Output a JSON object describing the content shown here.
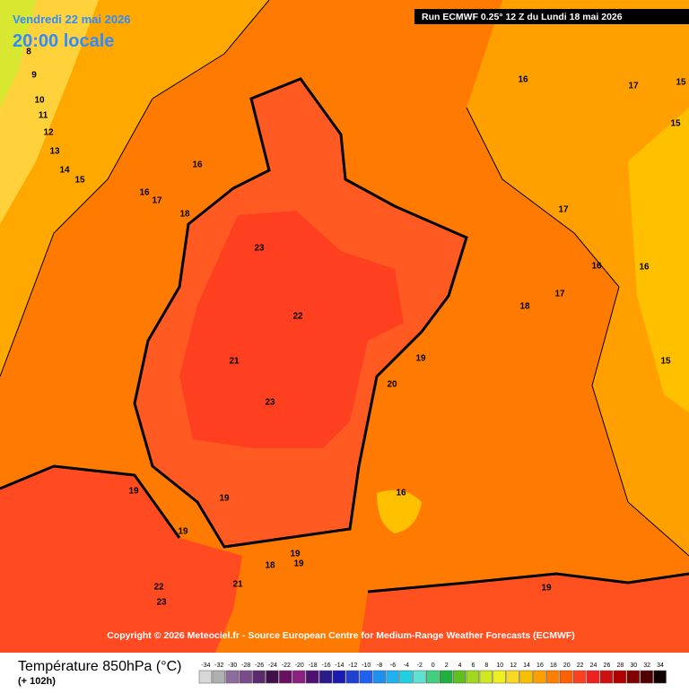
{
  "header": {
    "date": "Vendredi 22 mai 2026",
    "time": "20:00 locale",
    "run": "Run ECMWF 0.25° 12 Z du Lundi 18 mai 2026"
  },
  "copyright": "Copyright © 2026 Meteociel.fr - Source European Centre for Medium-Range Weather Forecasts (ECMWF)",
  "contour_labels": [
    8,
    9,
    10,
    11,
    12,
    13,
    14,
    15,
    16,
    16,
    17,
    18,
    23,
    22,
    21,
    23,
    19,
    20,
    18,
    17,
    17,
    16,
    16,
    16,
    17,
    15,
    15,
    15,
    16,
    19,
    19,
    19,
    19,
    19,
    18,
    21,
    22,
    23,
    19
  ],
  "legend": {
    "title": "Température 850hPa (°C)",
    "lead": "(+ 102h)",
    "values": [
      -34,
      -32,
      -30,
      -28,
      -26,
      -24,
      -22,
      -20,
      -18,
      -16,
      -14,
      -12,
      -10,
      -8,
      -6,
      -4,
      -2,
      0,
      2,
      4,
      6,
      8,
      10,
      12,
      14,
      16,
      18,
      20,
      22,
      24,
      26,
      28,
      30,
      32,
      34
    ],
    "colors": [
      "#d8d8d8",
      "#b0b0b0",
      "#8c6c9c",
      "#7a4a8a",
      "#5a2a6a",
      "#40104a",
      "#6a1060",
      "#8a2080",
      "#501070",
      "#2a1a8a",
      "#1a1ab0",
      "#2040d0",
      "#2060f0",
      "#2090f0",
      "#20b0f0",
      "#20d0e0",
      "#60e0d0",
      "#40d080",
      "#20b040",
      "#60c020",
      "#a0d820",
      "#d0e820",
      "#f0f020",
      "#f8d820",
      "#f8c000",
      "#ffa000",
      "#ff8000",
      "#ff6000",
      "#ff4020",
      "#f02020",
      "#d01010",
      "#b00000",
      "#800000",
      "#500000",
      "#100000"
    ]
  }
}
